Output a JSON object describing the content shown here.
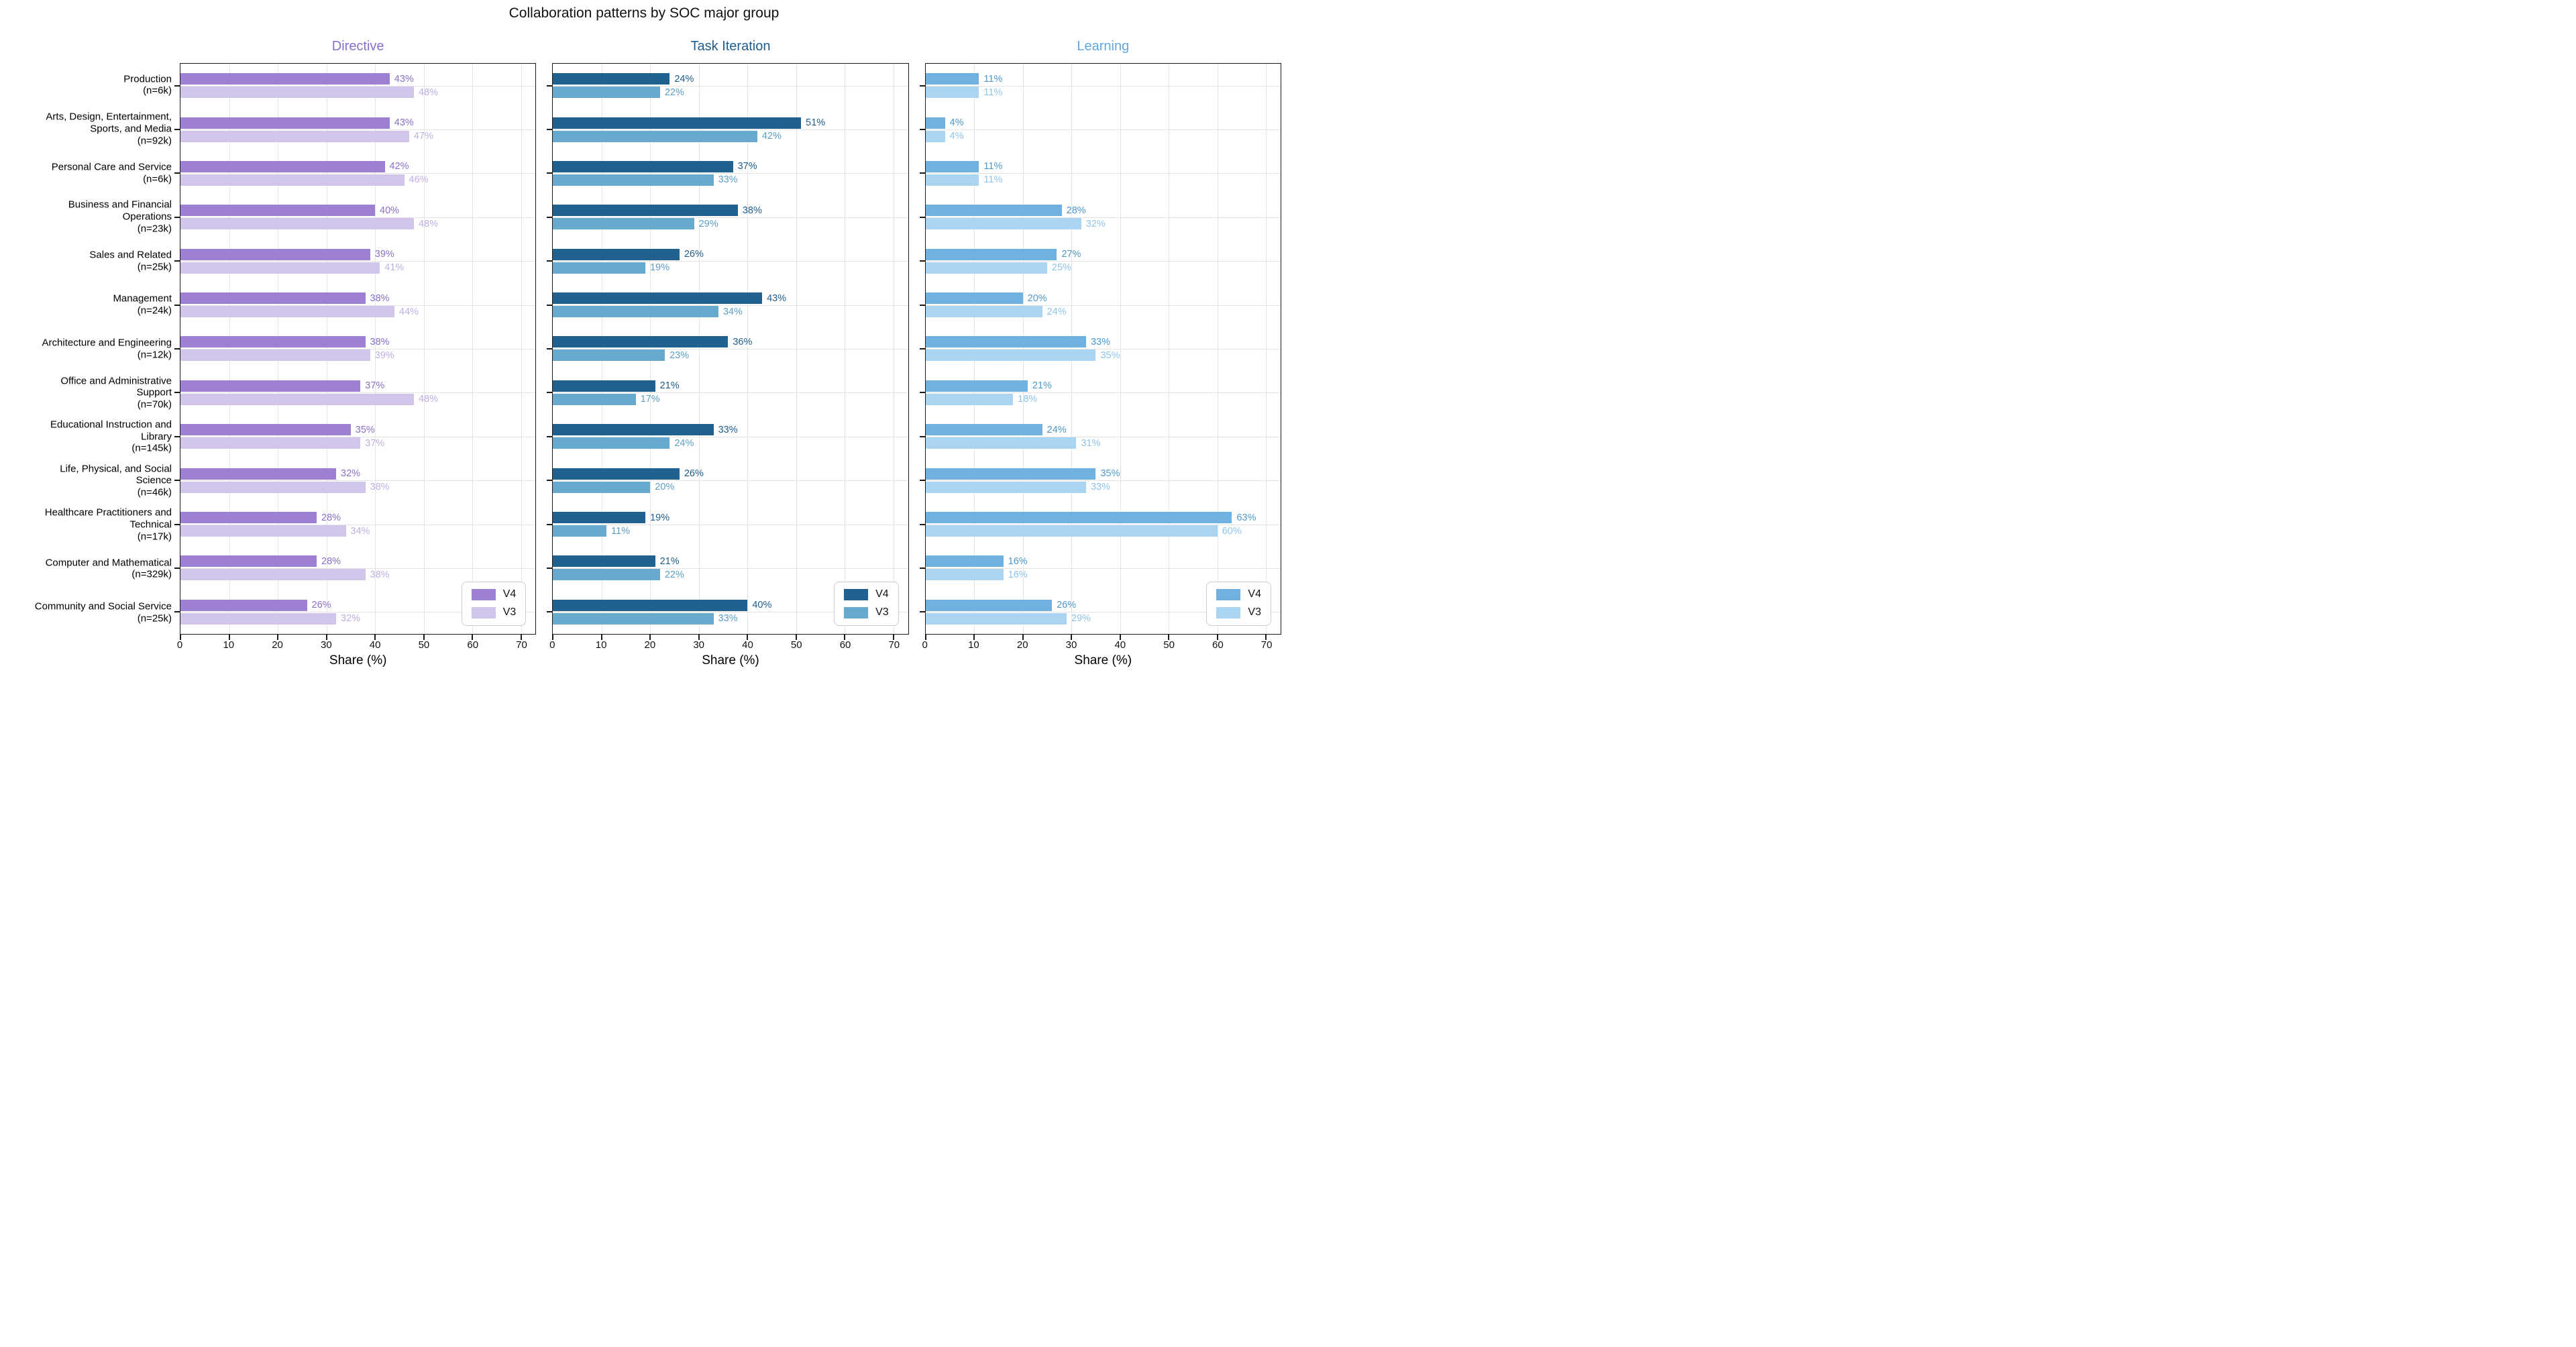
{
  "chart_data": {
    "type": "bar",
    "orientation": "horizontal",
    "title": "Collaboration patterns by SOC major group",
    "xlabel": "Share (%)",
    "x_ticks": [
      0,
      10,
      20,
      30,
      40,
      50,
      60,
      70
    ],
    "x_max": 73,
    "grid": true,
    "legend_position": "lower right",
    "legend_labels": [
      "V4",
      "V3"
    ],
    "value_suffix": "%",
    "categories": [
      {
        "name": "Production",
        "n": "6k",
        "lines": [
          "Production",
          "(n=6k)"
        ]
      },
      {
        "name": "Arts, Design, Entertainment, Sports, and Media",
        "n": "92k",
        "lines": [
          "Arts, Design, Entertainment,",
          "Sports, and Media",
          "(n=92k)"
        ]
      },
      {
        "name": "Personal Care and Service",
        "n": "6k",
        "lines": [
          "Personal Care and Service",
          "(n=6k)"
        ]
      },
      {
        "name": "Business and Financial Operations",
        "n": "23k",
        "lines": [
          "Business and Financial",
          "Operations",
          "(n=23k)"
        ]
      },
      {
        "name": "Sales and Related",
        "n": "25k",
        "lines": [
          "Sales and Related",
          "(n=25k)"
        ]
      },
      {
        "name": "Management",
        "n": "24k",
        "lines": [
          "Management",
          "(n=24k)"
        ]
      },
      {
        "name": "Architecture and Engineering",
        "n": "12k",
        "lines": [
          "Architecture and Engineering",
          "(n=12k)"
        ]
      },
      {
        "name": "Office and Administrative Support",
        "n": "70k",
        "lines": [
          "Office and Administrative",
          "Support",
          "(n=70k)"
        ]
      },
      {
        "name": "Educational Instruction and Library",
        "n": "145k",
        "lines": [
          "Educational Instruction and",
          "Library",
          "(n=145k)"
        ]
      },
      {
        "name": "Life, Physical, and Social Science",
        "n": "46k",
        "lines": [
          "Life, Physical, and Social",
          "Science",
          "(n=46k)"
        ]
      },
      {
        "name": "Healthcare Practitioners and Technical",
        "n": "17k",
        "lines": [
          "Healthcare Practitioners and",
          "Technical",
          "(n=17k)"
        ]
      },
      {
        "name": "Computer and Mathematical",
        "n": "329k",
        "lines": [
          "Computer and Mathematical",
          "(n=329k)"
        ]
      },
      {
        "name": "Community and Social Service",
        "n": "25k",
        "lines": [
          "Community and Social Service",
          "(n=25k)"
        ]
      }
    ],
    "panels": [
      {
        "key": "directive",
        "title": "Directive",
        "title_color": "#8A6FCB",
        "bar_colors": {
          "v4": "#9D80D3",
          "v3": "#D2C5EC"
        },
        "value_label_colors": {
          "v4": "#8A6FCB",
          "v3": "#BFAEE3"
        },
        "series": [
          {
            "name": "V4",
            "values": [
              43,
              43,
              42,
              40,
              39,
              38,
              38,
              37,
              35,
              32,
              28,
              28,
              26
            ]
          },
          {
            "name": "V3",
            "values": [
              48,
              47,
              46,
              48,
              41,
              44,
              39,
              48,
              37,
              38,
              34,
              38,
              32
            ]
          }
        ]
      },
      {
        "key": "task-iteration",
        "title": "Task Iteration",
        "title_color": "#1E5D8D",
        "bar_colors": {
          "v4": "#20618F",
          "v3": "#68A9CE"
        },
        "value_label_colors": {
          "v4": "#1E5D8D",
          "v3": "#5C9FC6"
        },
        "series": [
          {
            "name": "V4",
            "values": [
              24,
              51,
              37,
              38,
              26,
              43,
              36,
              21,
              33,
              26,
              19,
              21,
              40
            ]
          },
          {
            "name": "V3",
            "values": [
              22,
              42,
              33,
              29,
              19,
              34,
              23,
              17,
              24,
              20,
              11,
              22,
              33
            ]
          }
        ]
      },
      {
        "key": "learning",
        "title": "Learning",
        "title_color": "#61A9DC",
        "bar_colors": {
          "v4": "#6FB1E0",
          "v3": "#A9D5F2"
        },
        "value_label_colors": {
          "v4": "#4E98CC",
          "v3": "#8FC4EA"
        },
        "series": [
          {
            "name": "V4",
            "values": [
              11,
              4,
              11,
              28,
              27,
              20,
              33,
              21,
              24,
              35,
              63,
              16,
              26
            ]
          },
          {
            "name": "V3",
            "values": [
              11,
              4,
              11,
              32,
              25,
              24,
              35,
              18,
              31,
              33,
              60,
              16,
              29
            ]
          }
        ]
      }
    ]
  }
}
